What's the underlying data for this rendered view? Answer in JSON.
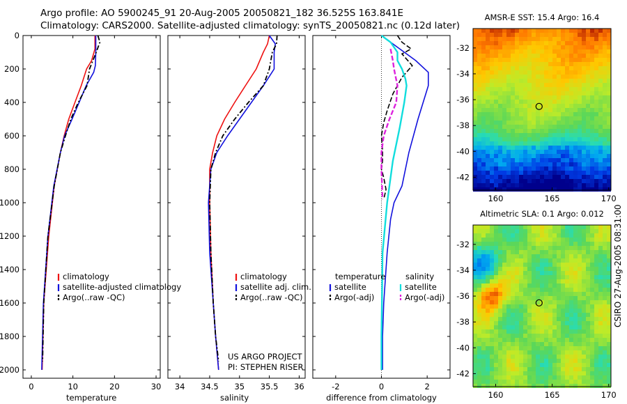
{
  "header": {
    "line1": "Argo profile: AO 5900245_91 20-Aug-2005 20050821_182 36.525S 163.841E",
    "line2": "Climatology: CARS2000. Satellite-adjusted climatology: synTS_20050821.nc (0.12d later)"
  },
  "stamp": "CSIRO 27-Aug-2005 08:31:00",
  "colors": {
    "climatology": "#ee1111",
    "satellite": "#1111dd",
    "argo": "#000000",
    "sat_salinity": "#11dddd",
    "argo_salinity": "#dd22dd"
  },
  "chart_data": [
    {
      "type": "line",
      "panel": "temperature",
      "xlabel": "temperature",
      "ylabel": "",
      "xlim": [
        -2,
        31
      ],
      "ylim": [
        2050,
        0
      ],
      "xticks": [
        "0",
        "10",
        "20",
        "30"
      ],
      "yticks": [
        "0",
        "200",
        "400",
        "600",
        "800",
        "1000",
        "1200",
        "1400",
        "1600",
        "1800",
        "2000"
      ],
      "legend": [
        "climatology",
        "satellite-adjusted climatology",
        "Argo(..raw -QC)"
      ],
      "series": [
        {
          "name": "climatology",
          "x": [
            15.3,
            15.3,
            14.5,
            13.3,
            12.0,
            10.5,
            9.0,
            7.9,
            7.0,
            5.5,
            4.2,
            3.0,
            2.6
          ],
          "y": [
            0,
            80,
            150,
            200,
            300,
            400,
            500,
            600,
            700,
            900,
            1200,
            1600,
            2000
          ]
        },
        {
          "name": "satellite-adjusted climatology",
          "x": [
            15.5,
            15.5,
            15.4,
            15.0,
            13.2,
            11.5,
            9.8,
            8.0,
            7.0,
            5.4,
            4.0,
            2.9,
            2.5
          ],
          "y": [
            0,
            100,
            180,
            220,
            300,
            400,
            500,
            600,
            700,
            900,
            1200,
            1600,
            2000
          ]
        },
        {
          "name": "Argo(..raw -QC)",
          "x": [
            16.0,
            16.5,
            15.6,
            14.0,
            13.4,
            11.3,
            9.5,
            8.2,
            7.0,
            5.5,
            4.0,
            3.0,
            2.7
          ],
          "y": [
            0,
            40,
            100,
            200,
            300,
            400,
            500,
            600,
            700,
            900,
            1200,
            1600,
            1950
          ]
        }
      ]
    },
    {
      "type": "line",
      "panel": "salinity",
      "xlabel": "salinity",
      "ylabel": "",
      "xlim": [
        33.8,
        36.1
      ],
      "ylim": [
        2050,
        0
      ],
      "xticks": [
        "34",
        "34.5",
        "35",
        "35.5",
        "36"
      ],
      "legend": [
        "climatology",
        "satellite adj. clim.",
        "Argo(..raw -QC)"
      ],
      "annotation": [
        "US ARGO PROJECT",
        "PI: STEPHEN RISER"
      ],
      "series": [
        {
          "name": "climatology",
          "x": [
            35.5,
            35.47,
            35.4,
            35.28,
            35.1,
            34.92,
            34.75,
            34.62,
            34.55,
            34.5,
            34.5,
            34.52,
            34.56,
            34.6,
            34.65
          ],
          "y": [
            0,
            50,
            100,
            200,
            300,
            400,
            500,
            600,
            700,
            800,
            1000,
            1300,
            1600,
            1800,
            2000
          ]
        },
        {
          "name": "satellite adj. clim.",
          "x": [
            35.5,
            35.6,
            35.58,
            35.58,
            35.4,
            35.2,
            35.0,
            34.8,
            34.62,
            34.52,
            34.48,
            34.5,
            34.56,
            34.6,
            34.65
          ],
          "y": [
            0,
            50,
            100,
            200,
            300,
            400,
            500,
            600,
            700,
            800,
            1000,
            1300,
            1600,
            1800,
            2000
          ]
        },
        {
          "name": "Argo(..raw -QC)",
          "x": [
            35.63,
            35.62,
            35.55,
            35.5,
            35.4,
            35.15,
            34.92,
            34.72,
            34.6,
            34.52,
            34.5,
            34.52,
            34.56,
            34.6,
            34.65
          ],
          "y": [
            0,
            50,
            100,
            200,
            300,
            400,
            500,
            600,
            700,
            800,
            1000,
            1300,
            1600,
            1800,
            1950
          ]
        }
      ]
    },
    {
      "type": "line",
      "panel": "difference",
      "xlabel": "difference from climatology",
      "ylabel": "",
      "xlim": [
        -3,
        3
      ],
      "ylim": [
        2050,
        0
      ],
      "xticks": [
        "-2",
        "0",
        "2"
      ],
      "legend_headers": [
        "temperature",
        "salinity"
      ],
      "legend": [
        "satellite",
        "Argo(-adj)",
        "satellite",
        "Argo(-adj)"
      ],
      "series": [
        {
          "name": "satellite",
          "group": "temperature",
          "x": [
            0.0,
            0.6,
            1.5,
            2.05,
            2.05,
            1.6,
            1.2,
            0.9,
            0.55,
            0.4,
            0.25,
            0.1,
            0.05,
            0.05
          ],
          "y": [
            0,
            60,
            150,
            220,
            300,
            500,
            700,
            900,
            1000,
            1100,
            1300,
            1600,
            1800,
            2000
          ]
        },
        {
          "name": "Argo(-adj)",
          "group": "temperature",
          "x": [
            0.7,
            0.9,
            1.3,
            0.9,
            1.35,
            0.9,
            0.5,
            0.25,
            0.1,
            0.0,
            0.05,
            0.05,
            0.0,
            0.1,
            0.2,
            0.1
          ],
          "y": [
            0,
            40,
            80,
            110,
            180,
            250,
            350,
            450,
            520,
            600,
            680,
            750,
            800,
            850,
            920,
            980
          ]
        },
        {
          "name": "satellite",
          "group": "salinity",
          "x": [
            0.0,
            0.4,
            0.7,
            0.7,
            0.9,
            1.05,
            1.1,
            1.0,
            0.8,
            0.5,
            0.25,
            0.05,
            0.02,
            0.0,
            0.0
          ],
          "y": [
            0,
            40,
            100,
            150,
            200,
            260,
            300,
            400,
            550,
            750,
            1000,
            1300,
            1600,
            1800,
            2000
          ]
        },
        {
          "name": "Argo(-adj)",
          "group": "salinity",
          "x": [
            0.4,
            0.5,
            0.55,
            0.7,
            0.65,
            0.35,
            0.1,
            0.0,
            0.0,
            0.05
          ],
          "y": [
            80,
            150,
            200,
            300,
            400,
            500,
            600,
            700,
            800,
            980
          ]
        }
      ]
    },
    {
      "type": "heatmap",
      "panel": "sst_map",
      "title": "AMSR-E SST: 15.4 Argo: 16.4",
      "xlim": [
        158,
        170.2
      ],
      "ylim": [
        -43,
        -30.5
      ],
      "xticks": [
        "160",
        "165",
        "170"
      ],
      "yticks": [
        "-32",
        "-34",
        "-36",
        "-38",
        "-40",
        "-42"
      ],
      "marker": {
        "lon": 163.841,
        "lat": -36.525
      }
    },
    {
      "type": "heatmap",
      "panel": "sla_map",
      "title": "Altimetric SLA: 0.1 Argo: 0.012",
      "xlim": [
        158,
        170.2
      ],
      "ylim": [
        -43,
        -30.5
      ],
      "xticks": [
        "160",
        "165",
        "170"
      ],
      "yticks": [
        "-32",
        "-34",
        "-36",
        "-38",
        "-40",
        "-42"
      ],
      "marker": {
        "lon": 163.841,
        "lat": -36.525
      }
    }
  ]
}
